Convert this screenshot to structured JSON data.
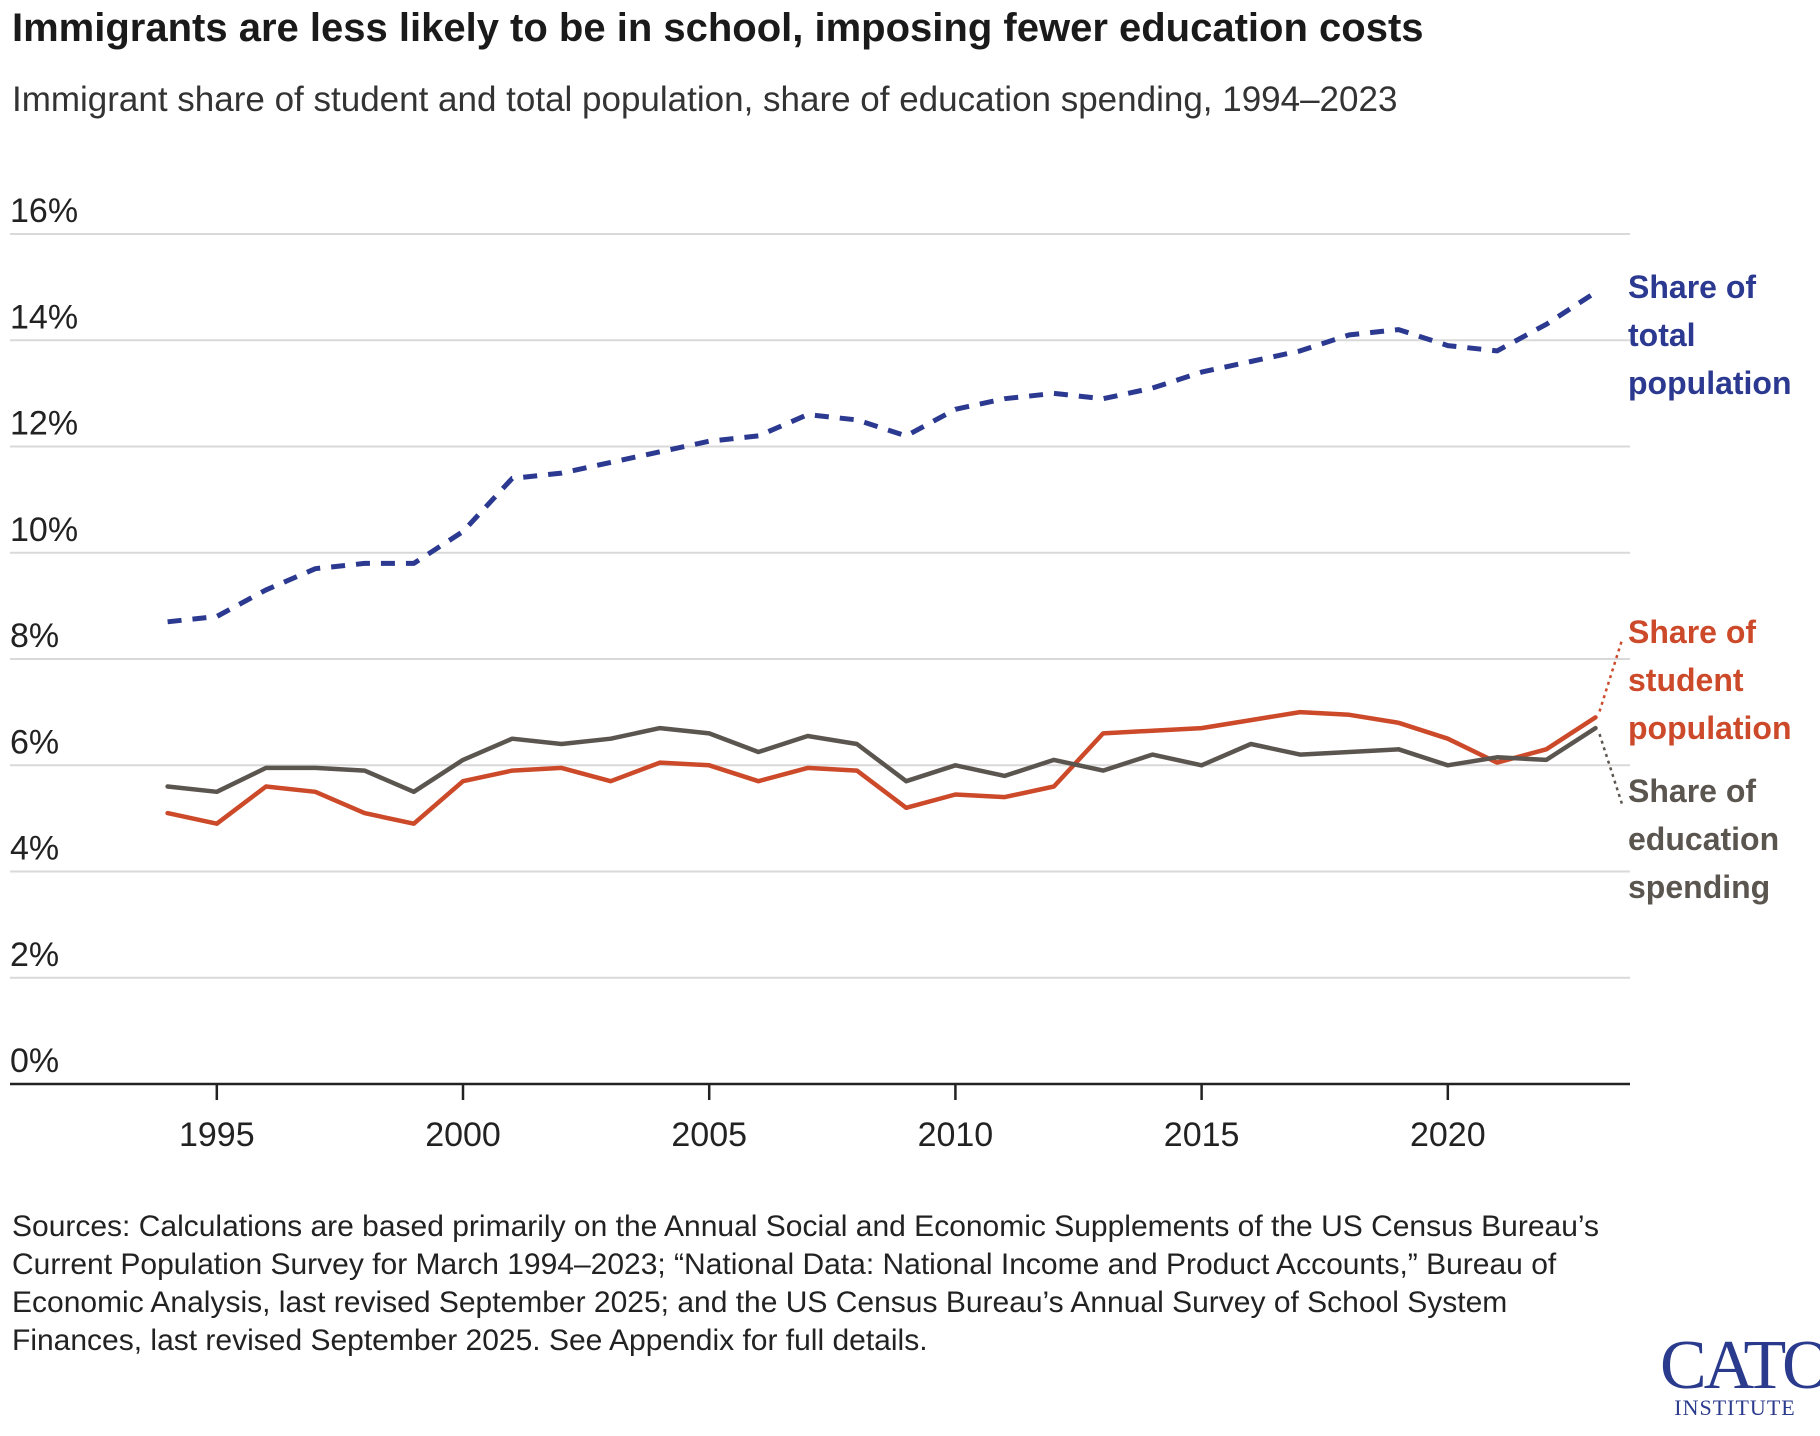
{
  "title": "Immigrants are less likely to be in school, imposing fewer education costs",
  "subtitle": "Immigrant share of student and total population, share of education spending, 1994–2023",
  "sources": "Sources: Calculations are based primarily on the Annual Social and Economic Supplements of the US Census Bureau’s Current Population Survey for March 1994–2023; “National Data: National Income and Product Accounts,” Bureau of Economic Analysis, last revised September 2025; and the US Census Bureau’s Annual Survey of School System Finances, last revised September 2025. See Appendix for full details.",
  "logo": {
    "main": "CATO",
    "sub": "INSTITUTE"
  },
  "chart_data": {
    "type": "line",
    "title": "Immigrants are less likely to be in school, imposing fewer education costs",
    "xlabel": "",
    "ylabel": "",
    "x": [
      1994,
      1995,
      1996,
      1997,
      1998,
      1999,
      2000,
      2001,
      2002,
      2003,
      2004,
      2005,
      2006,
      2007,
      2008,
      2009,
      2010,
      2011,
      2012,
      2013,
      2014,
      2015,
      2016,
      2017,
      2018,
      2019,
      2020,
      2021,
      2022,
      2023
    ],
    "xlim": [
      1990.8,
      2023.7
    ],
    "ylim": [
      0,
      16
    ],
    "y_ticks": [
      {
        "value": 0,
        "label": "0%"
      },
      {
        "value": 2,
        "label": "2%"
      },
      {
        "value": 4,
        "label": "4%"
      },
      {
        "value": 6,
        "label": "6%"
      },
      {
        "value": 8,
        "label": "8%"
      },
      {
        "value": 10,
        "label": "10%"
      },
      {
        "value": 12,
        "label": "12%"
      },
      {
        "value": 14,
        "label": "14%"
      },
      {
        "value": 16,
        "label": "16%"
      }
    ],
    "x_ticks": [
      {
        "value": 1995,
        "label": "1995"
      },
      {
        "value": 2000,
        "label": "2000"
      },
      {
        "value": 2005,
        "label": "2005"
      },
      {
        "value": 2010,
        "label": "2010"
      },
      {
        "value": 2015,
        "label": "2015"
      },
      {
        "value": 2020,
        "label": "2020"
      }
    ],
    "grid": true,
    "series": [
      {
        "name": "Share of total population",
        "label_lines": [
          "Share of",
          "total",
          "population"
        ],
        "color": "#2b3990",
        "dashed": true,
        "values": [
          8.7,
          8.8,
          9.3,
          9.7,
          9.8,
          9.8,
          10.4,
          11.4,
          11.5,
          11.7,
          11.9,
          12.1,
          12.2,
          12.6,
          12.5,
          12.2,
          12.7,
          12.9,
          13.0,
          12.9,
          13.1,
          13.4,
          13.6,
          13.8,
          14.1,
          14.2,
          13.9,
          13.8,
          14.3,
          14.9
        ]
      },
      {
        "name": "Share of student population",
        "label_lines": [
          "Share of",
          "student",
          "population"
        ],
        "color": "#cc4a2a",
        "dashed": false,
        "values": [
          5.1,
          4.9,
          5.6,
          5.5,
          5.1,
          4.9,
          5.7,
          5.9,
          5.95,
          5.7,
          6.05,
          6.0,
          5.7,
          5.95,
          5.9,
          5.2,
          5.45,
          5.4,
          5.6,
          6.6,
          6.65,
          6.7,
          6.85,
          7.0,
          6.95,
          6.8,
          6.5,
          6.05,
          6.3,
          6.9
        ]
      },
      {
        "name": "Share of education spending",
        "label_lines": [
          "Share of",
          "education",
          "spending"
        ],
        "color": "#5b5550",
        "dashed": false,
        "values": [
          5.6,
          5.5,
          5.95,
          5.95,
          5.9,
          5.5,
          6.1,
          6.5,
          6.4,
          6.5,
          6.7,
          6.6,
          6.25,
          6.55,
          6.4,
          5.7,
          6.0,
          5.8,
          6.1,
          5.9,
          6.2,
          6.0,
          6.4,
          6.2,
          6.25,
          6.3,
          6.0,
          6.15,
          6.1,
          6.7
        ]
      }
    ]
  }
}
